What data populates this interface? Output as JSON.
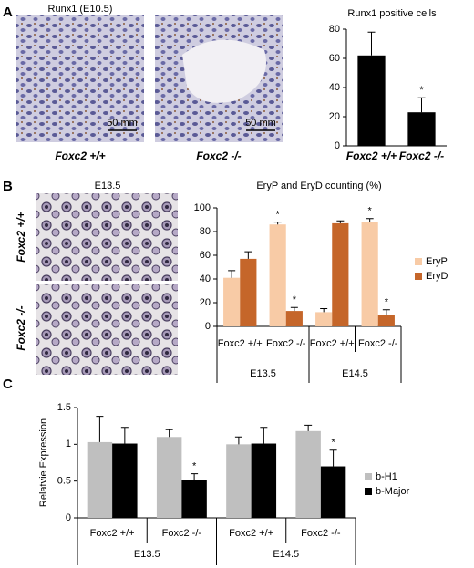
{
  "figure": {
    "panel_a": "A",
    "panel_b": "B",
    "panel_c": "C",
    "a_image_title": "Runx1 (E10.5)",
    "a_scale_1": "50 mm",
    "a_scale_2": "50 mm",
    "a_caption_1": "Foxc2 +/+",
    "a_caption_2": "Foxc2 -/-",
    "b_image_title": "E13.5",
    "b_side_1": "Foxc2 +/+",
    "b_side_2": "Foxc2 -/-"
  },
  "chart_data": [
    {
      "type": "bar",
      "title": "Runx1 positive cells",
      "categories": [
        "Foxc2 +/+",
        "Foxc2 -/-"
      ],
      "values": [
        62,
        23
      ],
      "errors": [
        16,
        10
      ],
      "color": "#000000",
      "significant": [
        false,
        true
      ],
      "annotation": "*",
      "ylim": [
        0,
        80
      ],
      "yticks": [
        0,
        20,
        40,
        60,
        80
      ]
    },
    {
      "type": "bar",
      "title": "EryP and EryD counting (%)",
      "categories": [
        "Foxc2 +/+",
        "Foxc2 -/-",
        "Foxc2 +/+",
        "Foxc2 -/-"
      ],
      "group_labels": [
        "E13.5",
        "E14.5"
      ],
      "annotation": "*",
      "series": [
        {
          "name": "EryP",
          "color": "#f8cba6",
          "values": [
            41,
            86,
            12,
            88
          ],
          "errors": [
            6,
            2,
            3,
            3
          ],
          "significant": [
            false,
            true,
            false,
            true
          ]
        },
        {
          "name": "EryD",
          "color": "#c5662a",
          "values": [
            57,
            13,
            87,
            10
          ],
          "errors": [
            6,
            3,
            2,
            4
          ],
          "significant": [
            false,
            true,
            false,
            true
          ]
        }
      ],
      "ylim": [
        0,
        100
      ],
      "yticks": [
        0,
        20,
        40,
        60,
        80,
        100
      ]
    },
    {
      "type": "bar",
      "ylabel": "Relatvie Expression",
      "categories": [
        "Foxc2 +/+",
        "Foxc2 -/-",
        "Foxc2 +/+",
        "Foxc2 -/-"
      ],
      "group_labels": [
        "E13.5",
        "E14.5"
      ],
      "annotation": "*",
      "series": [
        {
          "name": "b-H1",
          "color": "#bfbfbf",
          "values": [
            1.03,
            1.1,
            1.0,
            1.18
          ],
          "errors": [
            0.35,
            0.1,
            0.1,
            0.08
          ],
          "significant": [
            false,
            false,
            false,
            false
          ]
        },
        {
          "name": "b-Major",
          "color": "#000000",
          "values": [
            1.01,
            0.52,
            1.01,
            0.7
          ],
          "errors": [
            0.22,
            0.08,
            0.22,
            0.22
          ],
          "significant": [
            false,
            true,
            false,
            true
          ]
        }
      ],
      "ylim": [
        0,
        1.5
      ],
      "yticks": [
        0,
        0.5,
        1,
        1.5
      ]
    }
  ]
}
